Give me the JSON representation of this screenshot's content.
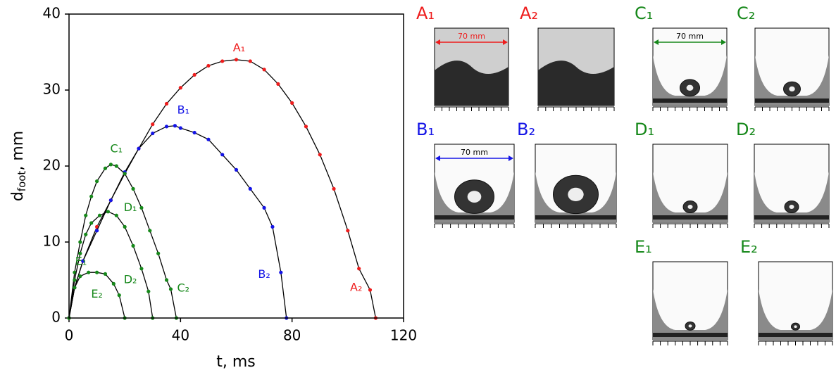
{
  "chart_data": {
    "type": "line",
    "x_label": "t, ms",
    "y_label": {
      "main": "d",
      "sub": "foot",
      "rest": ", mm"
    },
    "xlim": [
      0,
      120
    ],
    "xticks": [
      0,
      40,
      80,
      120
    ],
    "ylim": [
      0,
      40
    ],
    "yticks": [
      0,
      10,
      20,
      30,
      40
    ],
    "series": [
      {
        "name": "A",
        "color": "#ee1c1c",
        "x": [
          0,
          2,
          5,
          10,
          15,
          20,
          25,
          30,
          35,
          40,
          45,
          50,
          55,
          60,
          65,
          70,
          75,
          80,
          85,
          90,
          95,
          100,
          104,
          108,
          110
        ],
        "values": [
          0,
          4,
          7.5,
          12,
          15.5,
          19,
          22.3,
          25.5,
          28.2,
          30.3,
          32,
          33.2,
          33.8,
          34,
          33.8,
          32.7,
          30.8,
          28.3,
          25.2,
          21.5,
          17,
          11.5,
          6.5,
          3.7,
          0
        ]
      },
      {
        "name": "B",
        "color": "#1414e6",
        "x": [
          0,
          2,
          5,
          10,
          15,
          20,
          25,
          30,
          35,
          38,
          40,
          45,
          50,
          55,
          60,
          65,
          70,
          73,
          76,
          78
        ],
        "values": [
          0,
          4,
          7.5,
          11.5,
          15.5,
          19.2,
          22.3,
          24.3,
          25.2,
          25.3,
          25,
          24.4,
          23.5,
          21.5,
          19.5,
          17,
          14.5,
          12,
          6,
          0
        ]
      },
      {
        "name": "C",
        "color": "#16881a",
        "x": [
          0,
          2,
          4,
          6,
          8,
          10,
          13,
          15,
          17,
          20,
          23,
          26,
          29,
          32,
          35,
          36.5,
          38.5
        ],
        "values": [
          0,
          6,
          10,
          13.5,
          16,
          18,
          19.7,
          20.2,
          20,
          19,
          17,
          14.5,
          11.5,
          8.5,
          5,
          3.8,
          0
        ]
      },
      {
        "name": "D",
        "color": "#16881a",
        "x": [
          0,
          2,
          4,
          6,
          8,
          11,
          14,
          17,
          20,
          23,
          26,
          28.5,
          30
        ],
        "values": [
          0,
          5,
          8.5,
          11,
          12.5,
          13.5,
          14,
          13.5,
          12,
          9.5,
          6.5,
          3.5,
          0
        ]
      },
      {
        "name": "E",
        "color": "#16881a",
        "x": [
          0,
          2,
          4,
          7,
          10,
          13,
          16,
          18,
          20
        ],
        "values": [
          0,
          4,
          5.5,
          6,
          6,
          5.8,
          4.5,
          3,
          0
        ]
      }
    ],
    "annotations": [
      {
        "text": "A₁",
        "x": 61,
        "y": 35.5,
        "color": "#ee1c1c"
      },
      {
        "text": "A₂",
        "x": 103,
        "y": 4,
        "color": "#ee1c1c"
      },
      {
        "text": "B₁",
        "x": 41,
        "y": 27.3,
        "color": "#1414e6"
      },
      {
        "text": "B₂",
        "x": 70,
        "y": 5.7,
        "color": "#1414e6"
      },
      {
        "text": "C₁",
        "x": 17,
        "y": 22.2,
        "color": "#16881a"
      },
      {
        "text": "C₂",
        "x": 41,
        "y": 3.9,
        "color": "#16881a"
      },
      {
        "text": "D₁",
        "x": 22,
        "y": 14.5,
        "color": "#16881a"
      },
      {
        "text": "D₂",
        "x": 22,
        "y": 5,
        "color": "#16881a"
      },
      {
        "text": "E₁",
        "x": 4.3,
        "y": 7.4,
        "color": "#16881a"
      },
      {
        "text": "E₂",
        "x": 10,
        "y": 3.1,
        "color": "#16881a"
      }
    ]
  },
  "panels": [
    {
      "label": "A₁",
      "color": "#ee1c1c",
      "scale": "70 mm"
    },
    {
      "label": "A₂",
      "color": "#ee1c1c"
    },
    {
      "label": "C₁",
      "color": "#16881a",
      "scale": "70 mm"
    },
    {
      "label": "C₂",
      "color": "#16881a"
    },
    {
      "label": "B₁",
      "color": "#1414e6",
      "scale": "70 mm"
    },
    {
      "label": "B₂",
      "color": "#1414e6"
    },
    {
      "label": "D₁",
      "color": "#16881a"
    },
    {
      "label": "D₂",
      "color": "#16881a"
    },
    {
      "label": "E₁",
      "color": "#16881a"
    },
    {
      "label": "E₂",
      "color": "#16881a"
    }
  ]
}
